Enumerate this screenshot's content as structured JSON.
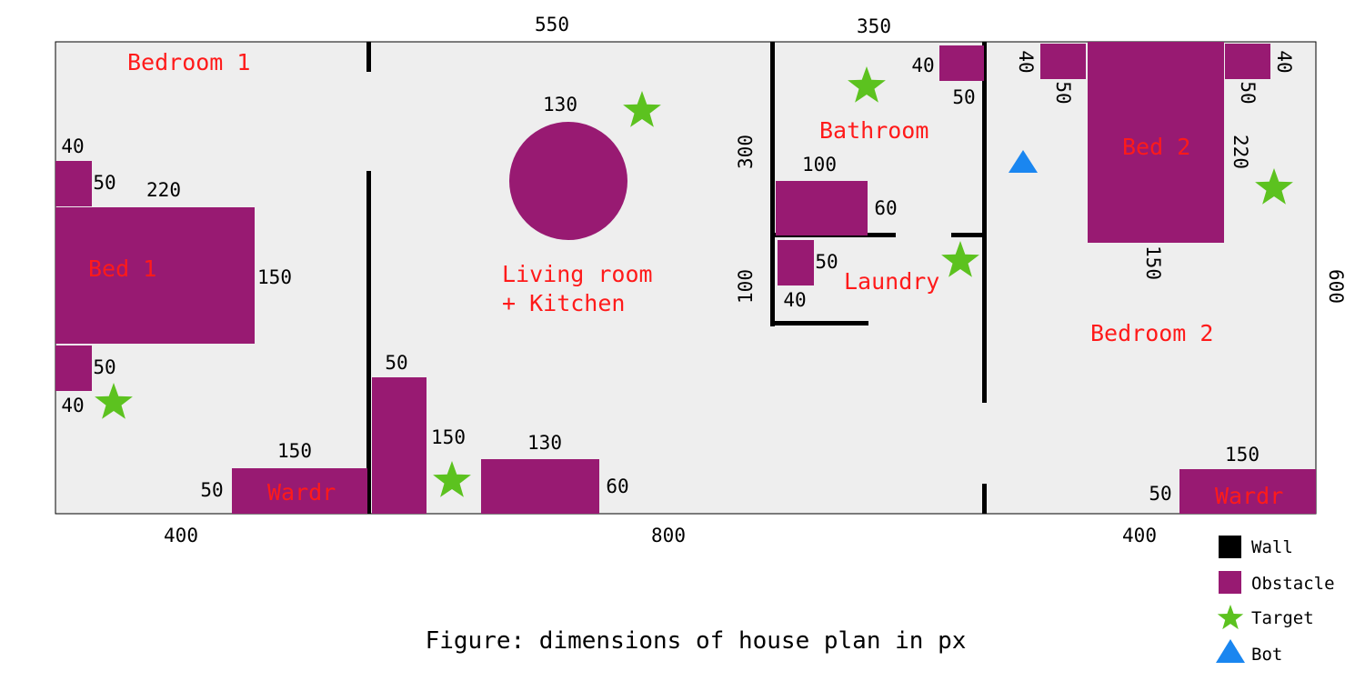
{
  "caption": "Figure: dimensions of house plan in px",
  "colors": {
    "floor": "#eeeeee",
    "wall": "#000000",
    "obstacle": "#981a72",
    "target": "#5cc21f",
    "bot": "#1a86f0",
    "room_label": "#ff1a1a"
  },
  "rooms": {
    "bedroom1": "Bedroom 1",
    "living1": "Living room",
    "living2": "+ Kitchen",
    "bathroom": "Bathroom",
    "laundry": "Laundry",
    "bedroom2": "Bedroom 2"
  },
  "furniture": {
    "bed1": "Bed 1",
    "bed2": "Bed 2",
    "wardr1": "Wardr",
    "wardr2": "Wardr"
  },
  "dims": {
    "top_550": "550",
    "top_350": "350",
    "right_600": "600",
    "bottom_400a": "400",
    "bottom_800": "800",
    "bottom_400b": "400",
    "circle_130": "130",
    "ns1_40": "40",
    "ns1_50": "50",
    "bed1_220": "220",
    "bed1_150": "150",
    "ns2_50": "50",
    "ns2_40": "40",
    "wardr1_150": "150",
    "wardr1_50": "50",
    "couch_50": "50",
    "couch_150": "150",
    "table_130": "130",
    "table_60": "60",
    "bath_300": "300",
    "bath_100": "100",
    "bath_60": "60",
    "laundry_50": "50",
    "laundry_40": "40",
    "laundry_100": "100",
    "toilet_40": "40",
    "toilet_50": "50",
    "ns3_40": "40",
    "ns3_50": "50",
    "ns4_50": "50",
    "ns4_40": "40",
    "bed2_220": "220",
    "bed2_150": "150",
    "wardr2_150": "150",
    "wardr2_50": "50"
  },
  "legend": {
    "wall": "Wall",
    "obstacle": "Obstacle",
    "target": "Target",
    "bot": "Bot"
  }
}
